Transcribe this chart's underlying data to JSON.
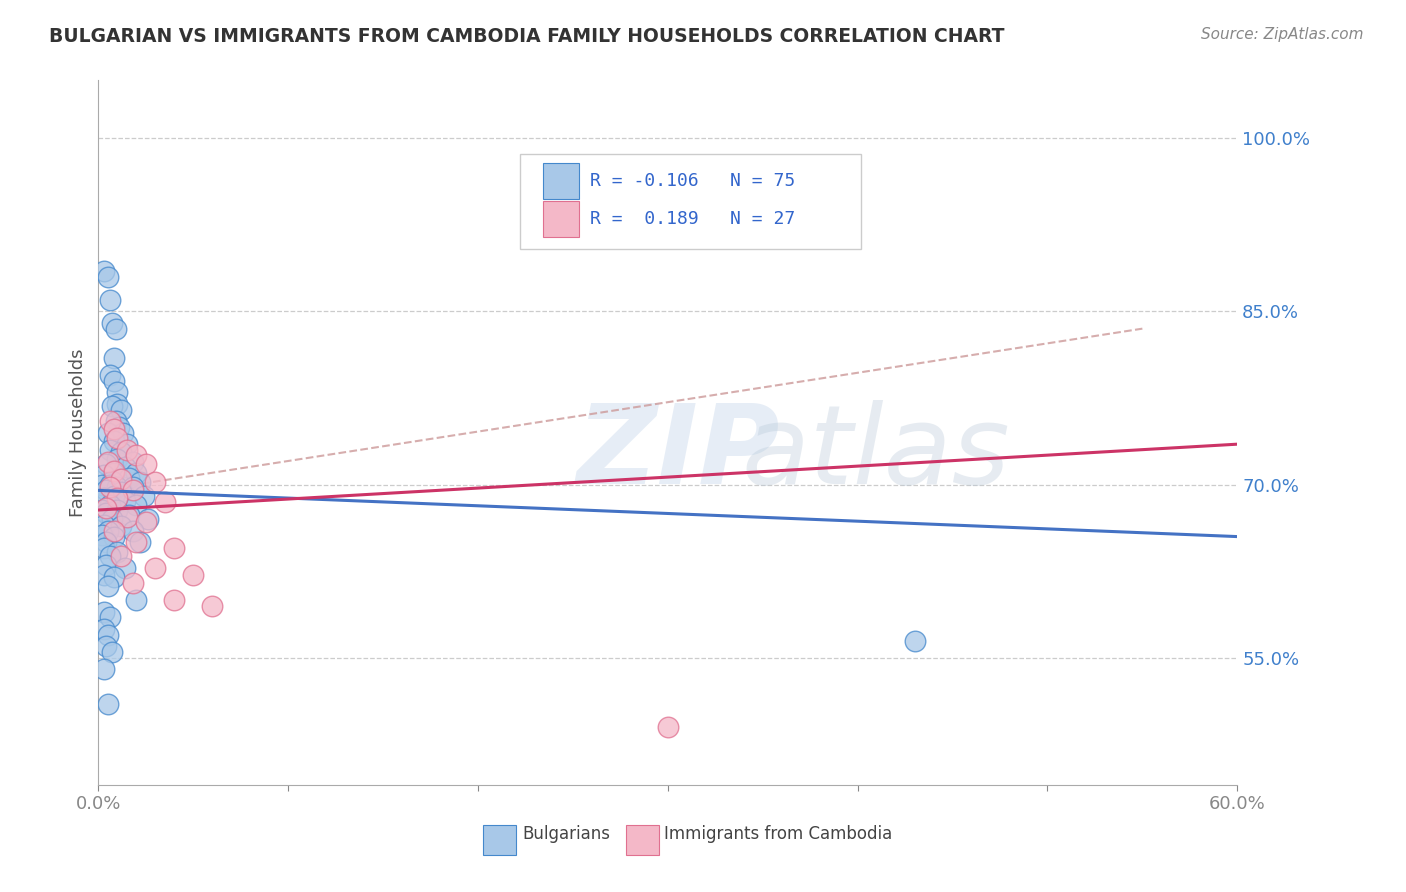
{
  "title": "BULGARIAN VS IMMIGRANTS FROM CAMBODIA FAMILY HOUSEHOLDS CORRELATION CHART",
  "source": "Source: ZipAtlas.com",
  "ylabel": "Family Households",
  "ytick_labels": [
    "55.0%",
    "70.0%",
    "85.0%",
    "100.0%"
  ],
  "ytick_values": [
    0.55,
    0.7,
    0.85,
    1.0
  ],
  "xtick_values": [
    0.0,
    0.1,
    0.2,
    0.3,
    0.4,
    0.5,
    0.6
  ],
  "xtick_labels": [
    "0.0%",
    "",
    "",
    "",
    "",
    "",
    "60.0%"
  ],
  "xmin": 0.0,
  "xmax": 0.6,
  "ymin": 0.44,
  "ymax": 1.05,
  "color_blue": "#a8c8e8",
  "color_pink": "#f4b8c8",
  "color_blue_edge": "#4488cc",
  "color_pink_edge": "#e07090",
  "color_trendline_blue": "#4472c4",
  "color_trendline_pink": "#cc3366",
  "color_dashed": "#cc9999",
  "blue_line_x": [
    0.0,
    0.6
  ],
  "blue_line_y": [
    0.695,
    0.655
  ],
  "pink_line_x": [
    0.0,
    0.6
  ],
  "pink_line_y": [
    0.678,
    0.735
  ],
  "dashed_line_x": [
    0.0,
    0.55
  ],
  "dashed_line_y": [
    0.695,
    0.835
  ],
  "blue_dots": [
    [
      0.003,
      0.885
    ],
    [
      0.005,
      0.88
    ],
    [
      0.006,
      0.86
    ],
    [
      0.007,
      0.84
    ],
    [
      0.009,
      0.835
    ],
    [
      0.008,
      0.81
    ],
    [
      0.006,
      0.795
    ],
    [
      0.008,
      0.79
    ],
    [
      0.01,
      0.78
    ],
    [
      0.01,
      0.77
    ],
    [
      0.007,
      0.768
    ],
    [
      0.012,
      0.765
    ],
    [
      0.009,
      0.755
    ],
    [
      0.011,
      0.75
    ],
    [
      0.005,
      0.745
    ],
    [
      0.013,
      0.745
    ],
    [
      0.008,
      0.738
    ],
    [
      0.015,
      0.735
    ],
    [
      0.006,
      0.73
    ],
    [
      0.012,
      0.728
    ],
    [
      0.01,
      0.722
    ],
    [
      0.018,
      0.72
    ],
    [
      0.004,
      0.718
    ],
    [
      0.014,
      0.715
    ],
    [
      0.008,
      0.71
    ],
    [
      0.02,
      0.71
    ],
    [
      0.003,
      0.708
    ],
    [
      0.016,
      0.706
    ],
    [
      0.007,
      0.703
    ],
    [
      0.022,
      0.702
    ],
    [
      0.002,
      0.7
    ],
    [
      0.006,
      0.7
    ],
    [
      0.01,
      0.698
    ],
    [
      0.018,
      0.698
    ],
    [
      0.004,
      0.695
    ],
    [
      0.012,
      0.694
    ],
    [
      0.008,
      0.69
    ],
    [
      0.024,
      0.69
    ],
    [
      0.003,
      0.688
    ],
    [
      0.014,
      0.686
    ],
    [
      0.006,
      0.682
    ],
    [
      0.02,
      0.682
    ],
    [
      0.002,
      0.678
    ],
    [
      0.01,
      0.678
    ],
    [
      0.004,
      0.675
    ],
    [
      0.016,
      0.674
    ],
    [
      0.007,
      0.67
    ],
    [
      0.026,
      0.67
    ],
    [
      0.003,
      0.665
    ],
    [
      0.012,
      0.664
    ],
    [
      0.005,
      0.66
    ],
    [
      0.018,
      0.66
    ],
    [
      0.002,
      0.656
    ],
    [
      0.008,
      0.655
    ],
    [
      0.004,
      0.65
    ],
    [
      0.022,
      0.65
    ],
    [
      0.003,
      0.645
    ],
    [
      0.01,
      0.642
    ],
    [
      0.006,
      0.638
    ],
    [
      0.004,
      0.63
    ],
    [
      0.014,
      0.628
    ],
    [
      0.003,
      0.622
    ],
    [
      0.008,
      0.62
    ],
    [
      0.005,
      0.612
    ],
    [
      0.02,
      0.6
    ],
    [
      0.003,
      0.59
    ],
    [
      0.006,
      0.585
    ],
    [
      0.003,
      0.575
    ],
    [
      0.005,
      0.57
    ],
    [
      0.004,
      0.56
    ],
    [
      0.007,
      0.555
    ],
    [
      0.003,
      0.54
    ],
    [
      0.005,
      0.51
    ],
    [
      0.43,
      0.565
    ]
  ],
  "pink_dots": [
    [
      0.006,
      0.755
    ],
    [
      0.008,
      0.748
    ],
    [
      0.01,
      0.74
    ],
    [
      0.015,
      0.73
    ],
    [
      0.02,
      0.726
    ],
    [
      0.005,
      0.72
    ],
    [
      0.025,
      0.718
    ],
    [
      0.008,
      0.712
    ],
    [
      0.012,
      0.705
    ],
    [
      0.03,
      0.702
    ],
    [
      0.006,
      0.698
    ],
    [
      0.018,
      0.695
    ],
    [
      0.01,
      0.688
    ],
    [
      0.035,
      0.685
    ],
    [
      0.004,
      0.68
    ],
    [
      0.015,
      0.672
    ],
    [
      0.025,
      0.668
    ],
    [
      0.008,
      0.66
    ],
    [
      0.02,
      0.65
    ],
    [
      0.04,
      0.645
    ],
    [
      0.012,
      0.638
    ],
    [
      0.03,
      0.628
    ],
    [
      0.05,
      0.622
    ],
    [
      0.018,
      0.615
    ],
    [
      0.04,
      0.6
    ],
    [
      0.06,
      0.595
    ],
    [
      0.3,
      0.49
    ]
  ]
}
